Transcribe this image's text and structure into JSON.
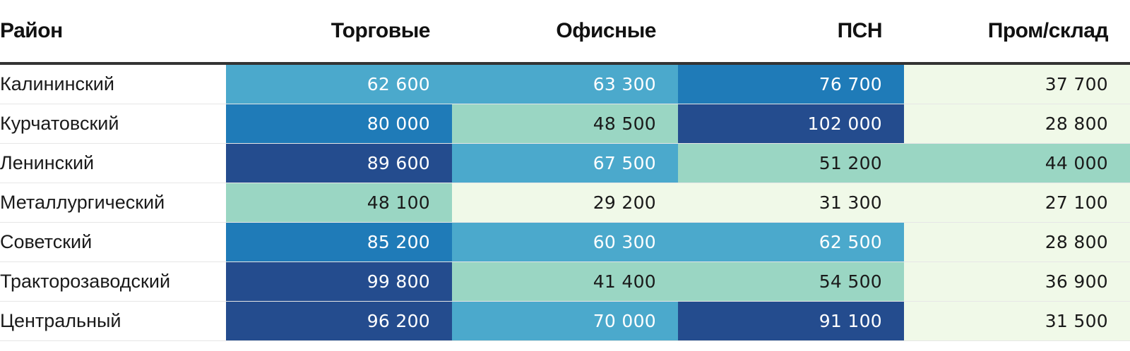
{
  "chart_data": {
    "type": "heatmap",
    "title": "",
    "row_header": "Район",
    "columns": [
      "Торговые",
      "Офисные",
      "ПСН",
      "Пром/склад"
    ],
    "rows": [
      {
        "name": "Калининский",
        "values": [
          "62 600",
          "63 300",
          "76 700",
          "37 700"
        ]
      },
      {
        "name": "Курчатовский",
        "values": [
          "80 000",
          "48 500",
          "102 000",
          "28 800"
        ]
      },
      {
        "name": "Ленинский",
        "values": [
          "89 600",
          "67 500",
          "51 200",
          "44 000"
        ]
      },
      {
        "name": "Металлургический",
        "values": [
          "48 100",
          "29 200",
          "31 300",
          "27 100"
        ]
      },
      {
        "name": "Советский",
        "values": [
          "85 200",
          "60 300",
          "62 500",
          "28 800"
        ]
      },
      {
        "name": "Тракторозаводский",
        "values": [
          "99 800",
          "41 400",
          "54 500",
          "36 900"
        ]
      },
      {
        "name": "Центральный",
        "values": [
          "96 200",
          "70 000",
          "91 100",
          "31 500"
        ]
      }
    ],
    "color_scale": {
      "bins": [
        {
          "max": 40000,
          "color": "#f0f9e8",
          "text": "#1a1a1a"
        },
        {
          "max": 55000,
          "color": "#9ad6c3",
          "text": "#1a1a1a"
        },
        {
          "max": 71000,
          "color": "#4ba9cc",
          "text": "#ffffff"
        },
        {
          "max": 86000,
          "color": "#1f7bb8",
          "text": "#ffffff"
        },
        {
          "max": 1000000,
          "color": "#244c8e",
          "text": "#ffffff"
        }
      ]
    }
  }
}
